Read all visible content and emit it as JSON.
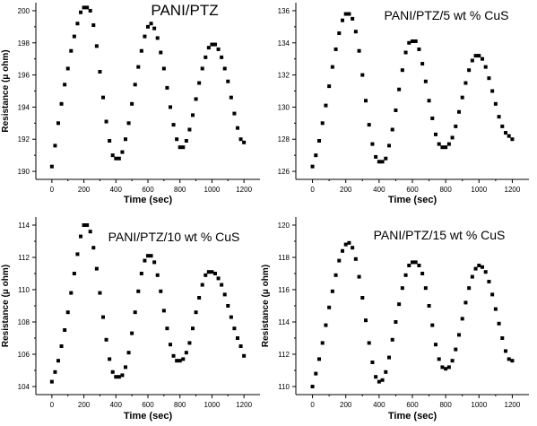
{
  "chart_data": [
    {
      "type": "scatter",
      "title": "PANI/PTZ",
      "xlabel": "Time (sec)",
      "ylabel": "Resistance (μ ohm)",
      "xlim": [
        -100,
        1300
      ],
      "ylim": [
        189.5,
        200.5
      ],
      "xticks": [
        0,
        200,
        400,
        600,
        800,
        1000,
        1200
      ],
      "yticks": [
        190,
        192,
        194,
        196,
        198,
        200
      ],
      "marker": "square",
      "color": "#000000",
      "x": [
        0,
        20,
        40,
        60,
        80,
        100,
        120,
        140,
        160,
        180,
        200,
        220,
        240,
        260,
        280,
        300,
        320,
        340,
        360,
        380,
        400,
        420,
        440,
        460,
        480,
        500,
        520,
        540,
        560,
        580,
        600,
        620,
        640,
        660,
        680,
        700,
        720,
        740,
        760,
        780,
        800,
        820,
        840,
        860,
        880,
        900,
        920,
        940,
        960,
        980,
        1000,
        1020,
        1040,
        1060,
        1080,
        1100,
        1120,
        1140,
        1160,
        1180,
        1200
      ],
      "y": [
        190.3,
        191.6,
        193.0,
        194.2,
        195.4,
        196.4,
        197.5,
        198.4,
        199.2,
        199.9,
        200.2,
        200.2,
        200.0,
        199.1,
        197.8,
        196.2,
        194.6,
        193.1,
        191.9,
        191.0,
        190.8,
        190.8,
        191.2,
        192.0,
        193.0,
        194.2,
        195.4,
        196.5,
        197.5,
        198.4,
        199.0,
        199.2,
        198.9,
        198.3,
        197.4,
        196.4,
        195.2,
        194.0,
        192.9,
        192.0,
        191.5,
        191.5,
        191.9,
        192.6,
        193.5,
        194.5,
        195.5,
        196.4,
        197.1,
        197.7,
        197.9,
        197.9,
        197.6,
        197.1,
        196.4,
        195.6,
        194.6,
        193.6,
        192.7,
        192.0,
        191.8
      ],
      "grid": false
    },
    {
      "type": "scatter",
      "title": "PANI/PTZ/5 wt % CuS",
      "xlabel": "Time (sec)",
      "ylabel": "",
      "xlim": [
        -100,
        1300
      ],
      "ylim": [
        125.5,
        136.5
      ],
      "xticks": [
        0,
        200,
        400,
        600,
        800,
        1000,
        1200
      ],
      "yticks": [
        126,
        128,
        130,
        132,
        134,
        136
      ],
      "marker": "square",
      "color": "#000000",
      "x": [
        0,
        20,
        40,
        60,
        80,
        100,
        120,
        140,
        160,
        180,
        200,
        220,
        240,
        260,
        280,
        300,
        320,
        340,
        360,
        380,
        400,
        420,
        440,
        460,
        480,
        500,
        520,
        540,
        560,
        580,
        600,
        620,
        640,
        660,
        680,
        700,
        720,
        740,
        760,
        780,
        800,
        820,
        840,
        860,
        880,
        900,
        920,
        940,
        960,
        980,
        1000,
        1020,
        1040,
        1060,
        1080,
        1100,
        1120,
        1140,
        1160,
        1180,
        1200
      ],
      "y": [
        126.3,
        127.0,
        127.9,
        129.0,
        130.1,
        131.3,
        132.5,
        133.6,
        134.6,
        135.4,
        135.8,
        135.8,
        135.5,
        134.7,
        133.5,
        132.0,
        130.4,
        128.9,
        127.7,
        126.9,
        126.6,
        126.6,
        126.8,
        127.6,
        128.6,
        129.8,
        131.1,
        132.3,
        133.4,
        134.0,
        134.1,
        134.1,
        133.6,
        132.7,
        131.6,
        130.4,
        129.3,
        128.3,
        127.7,
        127.5,
        127.5,
        127.7,
        128.1,
        128.8,
        129.7,
        130.6,
        131.5,
        132.3,
        132.9,
        133.2,
        133.2,
        133.0,
        132.5,
        131.8,
        131.0,
        130.2,
        129.4,
        128.8,
        128.4,
        128.2,
        128.0
      ],
      "grid": false
    },
    {
      "type": "scatter",
      "title": "PANI/PTZ/10 wt % CuS",
      "xlabel": "Time (sec)",
      "ylabel": "Resistance (μ ohm)",
      "xlim": [
        -100,
        1300
      ],
      "ylim": [
        103.5,
        114.5
      ],
      "xticks": [
        0,
        200,
        400,
        600,
        800,
        1000,
        1200
      ],
      "yticks": [
        104,
        106,
        108,
        110,
        112,
        114
      ],
      "marker": "square",
      "color": "#000000",
      "x": [
        0,
        20,
        40,
        60,
        80,
        100,
        120,
        140,
        160,
        180,
        200,
        220,
        240,
        260,
        280,
        300,
        320,
        340,
        360,
        380,
        400,
        420,
        440,
        460,
        480,
        500,
        520,
        540,
        560,
        580,
        600,
        620,
        640,
        660,
        680,
        700,
        720,
        740,
        760,
        780,
        800,
        820,
        840,
        860,
        880,
        900,
        920,
        940,
        960,
        980,
        1000,
        1020,
        1040,
        1060,
        1080,
        1100,
        1120,
        1140,
        1160,
        1180,
        1200
      ],
      "y": [
        104.3,
        104.9,
        105.6,
        106.5,
        107.5,
        108.6,
        109.8,
        111.0,
        112.2,
        113.3,
        114.0,
        114.0,
        113.6,
        112.6,
        111.3,
        109.8,
        108.3,
        106.9,
        105.7,
        104.9,
        104.6,
        104.6,
        104.7,
        105.2,
        106.1,
        107.3,
        108.6,
        109.9,
        111.0,
        111.8,
        112.1,
        112.1,
        111.7,
        110.9,
        109.9,
        108.7,
        107.6,
        106.6,
        105.9,
        105.6,
        105.6,
        105.7,
        106.1,
        106.7,
        107.6,
        108.6,
        109.5,
        110.3,
        110.9,
        111.1,
        111.1,
        111.0,
        110.7,
        110.3,
        109.7,
        109.0,
        108.3,
        107.6,
        107.0,
        106.5,
        105.9
      ],
      "grid": false
    },
    {
      "type": "scatter",
      "title": "PANI/PTZ/15 wt % CuS",
      "xlabel": "Time (sec)",
      "ylabel": "Resistance (μ ohm)",
      "xlim": [
        -100,
        1300
      ],
      "ylim": [
        109.5,
        120.5
      ],
      "xticks": [
        0,
        200,
        400,
        600,
        800,
        1000,
        1200
      ],
      "yticks": [
        110,
        112,
        114,
        116,
        118,
        120
      ],
      "marker": "square",
      "color": "#000000",
      "x": [
        0,
        20,
        40,
        60,
        80,
        100,
        120,
        140,
        160,
        180,
        200,
        220,
        240,
        260,
        280,
        300,
        320,
        340,
        360,
        380,
        400,
        420,
        440,
        460,
        480,
        500,
        520,
        540,
        560,
        580,
        600,
        620,
        640,
        660,
        680,
        700,
        720,
        740,
        760,
        780,
        800,
        820,
        840,
        860,
        880,
        900,
        920,
        940,
        960,
        980,
        1000,
        1020,
        1040,
        1060,
        1080,
        1100,
        1120,
        1140,
        1160,
        1180,
        1200
      ],
      "y": [
        110.0,
        110.8,
        111.7,
        112.7,
        113.8,
        114.9,
        115.9,
        116.9,
        117.8,
        118.4,
        118.8,
        118.9,
        118.6,
        117.9,
        116.8,
        115.5,
        114.1,
        112.7,
        111.5,
        110.6,
        110.3,
        110.4,
        110.9,
        111.8,
        112.9,
        114.0,
        115.1,
        116.1,
        116.9,
        117.5,
        117.7,
        117.7,
        117.5,
        117.0,
        116.1,
        115.0,
        113.8,
        112.6,
        111.7,
        111.2,
        111.1,
        111.2,
        111.6,
        112.3,
        113.2,
        114.2,
        115.2,
        116.1,
        116.8,
        117.3,
        117.5,
        117.4,
        117.1,
        116.5,
        115.7,
        114.8,
        113.9,
        113.0,
        112.2,
        111.7,
        111.6
      ],
      "grid": false
    }
  ]
}
